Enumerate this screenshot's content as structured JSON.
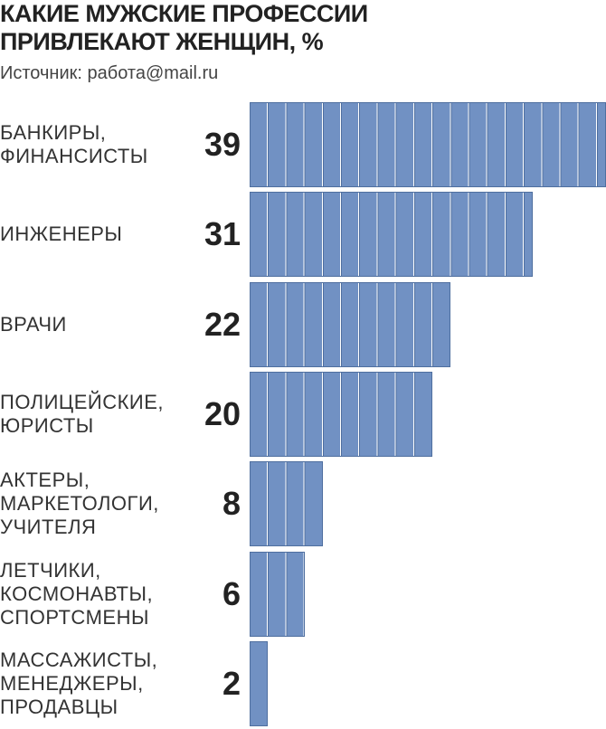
{
  "chart_data": {
    "type": "bar",
    "orientation": "horizontal",
    "title": "КАКИЕ МУЖСКИЕ ПРОФЕССИИ\nПРИВЛЕКАЮТ ЖЕНЩИН, %",
    "subtitle": "Источник: работа@mail.ru",
    "categories": [
      "БАНКИРЫ,\nФИНАНСИСТЫ",
      "ИНЖЕНЕРЫ",
      "ВРАЧИ",
      "ПОЛИЦЕЙСКИЕ,\nЮРИСТЫ",
      "АКТЕРЫ,\nМАРКЕТОЛОГИ,\nУЧИТЕЛЯ",
      "ЛЕТЧИКИ,\nКОСМОНАВТЫ,\nСПОРТСМЕНЫ",
      "МАССАЖИСТЫ,\nМЕНЕДЖЕРЫ,\nПРОДАВЦЫ"
    ],
    "values": [
      39,
      31,
      22,
      20,
      8,
      6,
      2
    ],
    "color": "#7191c3"
  }
}
